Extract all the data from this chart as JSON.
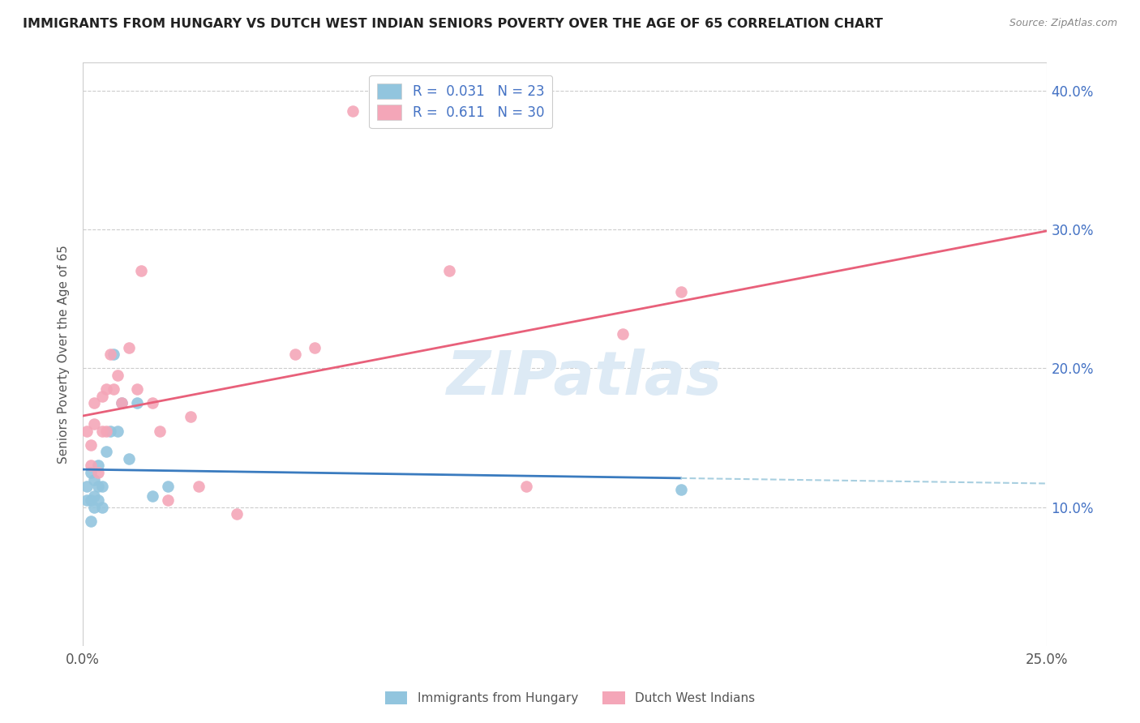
{
  "title": "IMMIGRANTS FROM HUNGARY VS DUTCH WEST INDIAN SENIORS POVERTY OVER THE AGE OF 65 CORRELATION CHART",
  "source": "Source: ZipAtlas.com",
  "ylabel": "Seniors Poverty Over the Age of 65",
  "xlim": [
    0.0,
    0.25
  ],
  "ylim": [
    0.0,
    0.42
  ],
  "watermark": "ZIPatlas",
  "blue_color": "#92c5de",
  "pink_color": "#f4a6b8",
  "blue_line_color": "#3a7bbf",
  "pink_line_color": "#e8607a",
  "blue_dashed_color": "#a8cfe0",
  "background_color": "#ffffff",
  "grid_color": "#cccccc",
  "hungary_x": [
    0.001,
    0.001,
    0.002,
    0.002,
    0.002,
    0.003,
    0.003,
    0.003,
    0.004,
    0.004,
    0.004,
    0.005,
    0.005,
    0.006,
    0.007,
    0.008,
    0.009,
    0.01,
    0.012,
    0.014,
    0.018,
    0.022,
    0.155
  ],
  "hungary_y": [
    0.115,
    0.105,
    0.125,
    0.105,
    0.09,
    0.12,
    0.108,
    0.1,
    0.115,
    0.13,
    0.105,
    0.115,
    0.1,
    0.14,
    0.155,
    0.21,
    0.155,
    0.175,
    0.135,
    0.175,
    0.108,
    0.115,
    0.113
  ],
  "dutch_x": [
    0.001,
    0.002,
    0.002,
    0.003,
    0.003,
    0.004,
    0.005,
    0.005,
    0.006,
    0.006,
    0.007,
    0.008,
    0.009,
    0.01,
    0.012,
    0.014,
    0.015,
    0.018,
    0.02,
    0.022,
    0.028,
    0.03,
    0.04,
    0.055,
    0.06,
    0.07,
    0.095,
    0.115,
    0.14,
    0.155
  ],
  "dutch_y": [
    0.155,
    0.145,
    0.13,
    0.16,
    0.175,
    0.125,
    0.18,
    0.155,
    0.185,
    0.155,
    0.21,
    0.185,
    0.195,
    0.175,
    0.215,
    0.185,
    0.27,
    0.175,
    0.155,
    0.105,
    0.165,
    0.115,
    0.095,
    0.21,
    0.215,
    0.385,
    0.27,
    0.115,
    0.225,
    0.255
  ],
  "r_hungary": 0.031,
  "n_hungary": 23,
  "r_dutch": 0.611,
  "n_dutch": 30
}
